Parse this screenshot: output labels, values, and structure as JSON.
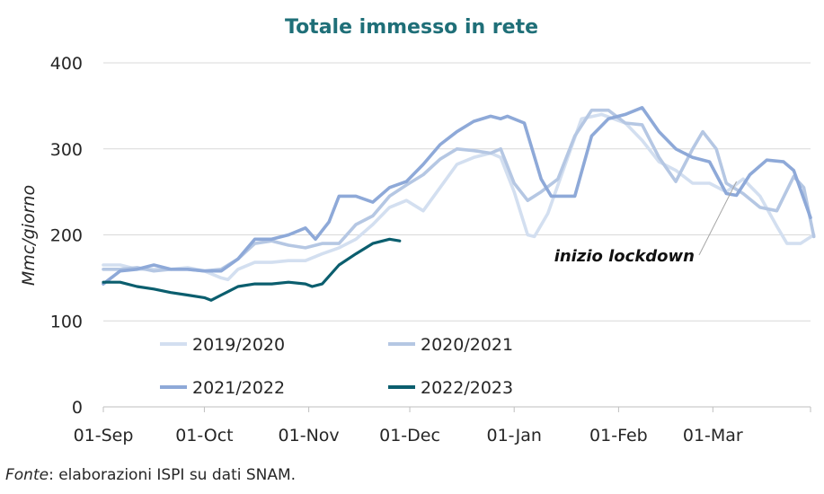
{
  "chart_data": {
    "type": "line",
    "title": "Totale immesso in rete",
    "xlabel": "",
    "ylabel": "Mmc/giorno",
    "ylim": [
      0,
      400
    ],
    "yticks": [
      0,
      100,
      200,
      300,
      400
    ],
    "x_index_range": [
      0,
      210
    ],
    "xticks": [
      {
        "label": "01-Sep",
        "index": 0
      },
      {
        "label": "01-Oct",
        "index": 30
      },
      {
        "label": "01-Nov",
        "index": 61
      },
      {
        "label": "01-Dec",
        "index": 91
      },
      {
        "label": "01-Jan",
        "index": 122
      },
      {
        "label": "01-Feb",
        "index": 153
      },
      {
        "label": "01-Mar",
        "index": 181
      }
    ],
    "grid": true,
    "series": [
      {
        "name": "2019/2020",
        "color": "#d3dff0",
        "points": [
          [
            0,
            165
          ],
          [
            5,
            165
          ],
          [
            10,
            160
          ],
          [
            15,
            160
          ],
          [
            20,
            160
          ],
          [
            25,
            162
          ],
          [
            30,
            158
          ],
          [
            35,
            150
          ],
          [
            37,
            148
          ],
          [
            40,
            160
          ],
          [
            45,
            168
          ],
          [
            50,
            168
          ],
          [
            55,
            170
          ],
          [
            60,
            170
          ],
          [
            65,
            178
          ],
          [
            70,
            185
          ],
          [
            75,
            195
          ],
          [
            80,
            212
          ],
          [
            85,
            232
          ],
          [
            90,
            240
          ],
          [
            95,
            228
          ],
          [
            100,
            255
          ],
          [
            105,
            282
          ],
          [
            110,
            290
          ],
          [
            115,
            295
          ],
          [
            118,
            290
          ],
          [
            122,
            250
          ],
          [
            126,
            200
          ],
          [
            128,
            198
          ],
          [
            132,
            225
          ],
          [
            137,
            280
          ],
          [
            142,
            335
          ],
          [
            148,
            340
          ],
          [
            155,
            330
          ],
          [
            160,
            310
          ],
          [
            165,
            285
          ],
          [
            170,
            275
          ],
          [
            175,
            260
          ],
          [
            180,
            260
          ],
          [
            185,
            250
          ],
          [
            190,
            265
          ],
          [
            195,
            245
          ],
          [
            200,
            210
          ],
          [
            203,
            190
          ],
          [
            207,
            190
          ],
          [
            211,
            200
          ]
        ]
      },
      {
        "name": "2020/2021",
        "color": "#b5c7e3",
        "points": [
          [
            0,
            160
          ],
          [
            5,
            160
          ],
          [
            10,
            162
          ],
          [
            15,
            158
          ],
          [
            20,
            160
          ],
          [
            25,
            160
          ],
          [
            30,
            158
          ],
          [
            35,
            160
          ],
          [
            40,
            172
          ],
          [
            45,
            190
          ],
          [
            50,
            193
          ],
          [
            55,
            188
          ],
          [
            60,
            185
          ],
          [
            65,
            190
          ],
          [
            70,
            190
          ],
          [
            75,
            212
          ],
          [
            80,
            222
          ],
          [
            85,
            245
          ],
          [
            90,
            258
          ],
          [
            95,
            270
          ],
          [
            100,
            288
          ],
          [
            105,
            300
          ],
          [
            110,
            298
          ],
          [
            115,
            295
          ],
          [
            118,
            300
          ],
          [
            122,
            260
          ],
          [
            126,
            240
          ],
          [
            130,
            250
          ],
          [
            135,
            265
          ],
          [
            140,
            315
          ],
          [
            145,
            345
          ],
          [
            150,
            345
          ],
          [
            155,
            330
          ],
          [
            160,
            328
          ],
          [
            165,
            290
          ],
          [
            170,
            262
          ],
          [
            175,
            300
          ],
          [
            178,
            320
          ],
          [
            182,
            300
          ],
          [
            185,
            260
          ],
          [
            190,
            248
          ],
          [
            195,
            232
          ],
          [
            200,
            228
          ],
          [
            205,
            268
          ],
          [
            208,
            255
          ],
          [
            211,
            198
          ]
        ]
      },
      {
        "name": "2021/2022",
        "color": "#8ea9d8",
        "points": [
          [
            0,
            143
          ],
          [
            5,
            158
          ],
          [
            10,
            160
          ],
          [
            15,
            165
          ],
          [
            20,
            160
          ],
          [
            25,
            160
          ],
          [
            30,
            158
          ],
          [
            35,
            158
          ],
          [
            40,
            172
          ],
          [
            45,
            195
          ],
          [
            50,
            195
          ],
          [
            55,
            200
          ],
          [
            60,
            208
          ],
          [
            63,
            195
          ],
          [
            67,
            215
          ],
          [
            70,
            245
          ],
          [
            75,
            245
          ],
          [
            80,
            238
          ],
          [
            85,
            255
          ],
          [
            90,
            262
          ],
          [
            95,
            282
          ],
          [
            100,
            305
          ],
          [
            105,
            320
          ],
          [
            110,
            332
          ],
          [
            115,
            338
          ],
          [
            118,
            335
          ],
          [
            120,
            338
          ],
          [
            125,
            330
          ],
          [
            130,
            265
          ],
          [
            133,
            245
          ],
          [
            140,
            245
          ],
          [
            145,
            315
          ],
          [
            150,
            335
          ],
          [
            155,
            340
          ],
          [
            160,
            348
          ],
          [
            165,
            320
          ],
          [
            170,
            300
          ],
          [
            175,
            290
          ],
          [
            180,
            285
          ],
          [
            185,
            248
          ],
          [
            188,
            246
          ],
          [
            192,
            270
          ],
          [
            197,
            287
          ],
          [
            202,
            285
          ],
          [
            205,
            275
          ],
          [
            210,
            220
          ]
        ]
      },
      {
        "name": "2022/2023",
        "color": "#0b5e6e",
        "points": [
          [
            0,
            145
          ],
          [
            5,
            145
          ],
          [
            10,
            140
          ],
          [
            15,
            137
          ],
          [
            20,
            133
          ],
          [
            25,
            130
          ],
          [
            30,
            127
          ],
          [
            32,
            124
          ],
          [
            35,
            130
          ],
          [
            40,
            140
          ],
          [
            45,
            143
          ],
          [
            50,
            143
          ],
          [
            55,
            145
          ],
          [
            60,
            143
          ],
          [
            62,
            140
          ],
          [
            65,
            143
          ],
          [
            70,
            165
          ],
          [
            75,
            178
          ],
          [
            80,
            190
          ],
          [
            85,
            195
          ],
          [
            88,
            193
          ]
        ]
      }
    ],
    "legend": [
      {
        "label": "2019/2020",
        "color": "#d3dff0"
      },
      {
        "label": "2020/2021",
        "color": "#b5c7e3"
      },
      {
        "label": "2021/2022",
        "color": "#8ea9d8"
      },
      {
        "label": "2022/2023",
        "color": "#0b5e6e"
      }
    ],
    "annotation": {
      "text": "inizio lockdown",
      "x_index": 188,
      "y": 262
    }
  },
  "source": {
    "label": "Fonte",
    "text": ": elaborazioni ISPI su dati SNAM."
  }
}
